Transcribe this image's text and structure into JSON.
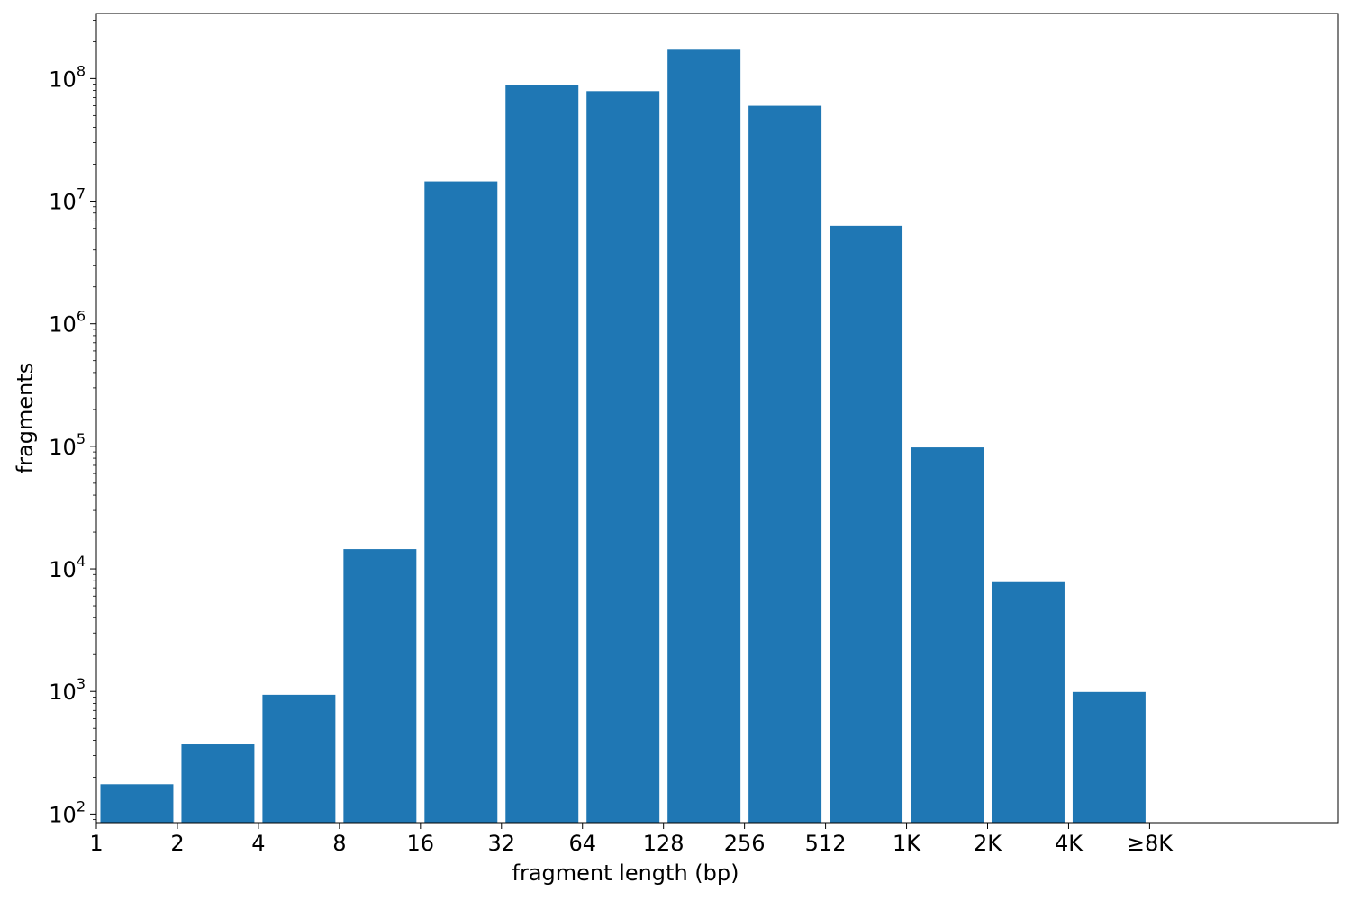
{
  "chart_data": {
    "type": "bar",
    "title": "",
    "xlabel": "fragment length (bp)",
    "ylabel": "fragments",
    "yscale": "log",
    "ylim": [
      85,
      340000000
    ],
    "grid": false,
    "bar_color": "#1f77b4",
    "x_tick_labels": [
      "1",
      "2",
      "4",
      "8",
      "16",
      "32",
      "64",
      "128",
      "256",
      "512",
      "1K",
      "2K",
      "4K",
      "≥8K"
    ],
    "y_ticks": [
      {
        "base": "10",
        "exp": "2",
        "value": 100
      },
      {
        "base": "10",
        "exp": "3",
        "value": 1000
      },
      {
        "base": "10",
        "exp": "4",
        "value": 10000
      },
      {
        "base": "10",
        "exp": "5",
        "value": 100000
      },
      {
        "base": "10",
        "exp": "6",
        "value": 1000000
      },
      {
        "base": "10",
        "exp": "7",
        "value": 10000000
      },
      {
        "base": "10",
        "exp": "8",
        "value": 100000000
      }
    ],
    "bins": [
      {
        "from": "1",
        "to": "2",
        "value": 175
      },
      {
        "from": "2",
        "to": "4",
        "value": 370
      },
      {
        "from": "4",
        "to": "8",
        "value": 940
      },
      {
        "from": "8",
        "to": "16",
        "value": 14500
      },
      {
        "from": "16",
        "to": "32",
        "value": 14500000
      },
      {
        "from": "32",
        "to": "64",
        "value": 88000000
      },
      {
        "from": "64",
        "to": "128",
        "value": 79000000
      },
      {
        "from": "128",
        "to": "256",
        "value": 172000000
      },
      {
        "from": "256",
        "to": "512",
        "value": 60000000
      },
      {
        "from": "512",
        "to": "1K",
        "value": 6300000
      },
      {
        "from": "1K",
        "to": "2K",
        "value": 98000
      },
      {
        "from": "2K",
        "to": "4K",
        "value": 7800
      },
      {
        "from": "4K",
        "to": "≥8K",
        "value": 990
      }
    ]
  }
}
